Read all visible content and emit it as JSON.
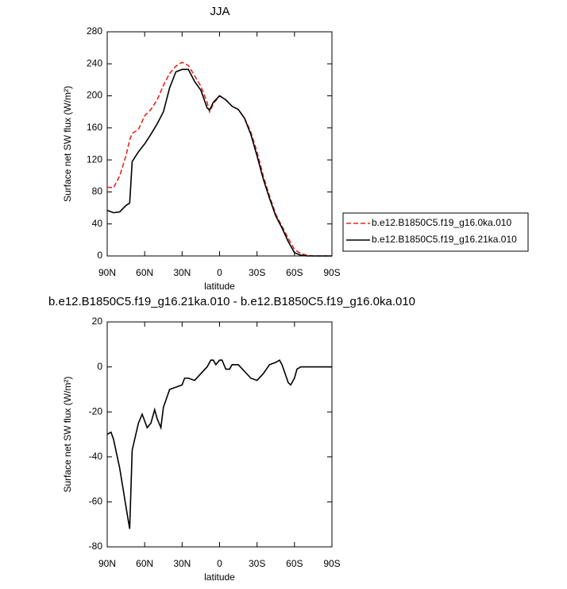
{
  "chart_data": [
    {
      "type": "line",
      "title": "JJA",
      "x_label": "latitude",
      "y_label": "Surface net SW flux (W/m²)",
      "x": [
        90,
        85,
        80,
        75,
        72,
        70,
        65,
        60,
        55,
        50,
        45,
        40,
        35,
        30,
        25,
        20,
        15,
        10,
        8,
        5,
        0,
        -5,
        -10,
        -15,
        -20,
        -25,
        -30,
        -35,
        -40,
        -45,
        -50,
        -55,
        -60,
        -65,
        -70,
        -75,
        -80,
        -85,
        -90
      ],
      "series": [
        {
          "name": "b.e12.B1850C5.f19_g16.0ka.010",
          "color": "#e8251f",
          "line_style": "dashed",
          "values": [
            86,
            85,
            100,
            125,
            145,
            153,
            158,
            175,
            183,
            195,
            213,
            228,
            237,
            242,
            238,
            225,
            212,
            192,
            180,
            190,
            200,
            195,
            187,
            183,
            172,
            155,
            130,
            100,
            75,
            52,
            37,
            22,
            8,
            3,
            1,
            0,
            0,
            0,
            0
          ]
        },
        {
          "name": "b.e12.B1850C5.f19_g16.21ka.010",
          "color": "#000000",
          "line_style": "solid",
          "values": [
            57,
            54,
            55,
            63,
            66,
            118,
            130,
            140,
            152,
            165,
            180,
            210,
            230,
            233,
            233,
            218,
            207,
            185,
            182,
            192,
            200,
            195,
            187,
            183,
            172,
            152,
            125,
            96,
            72,
            50,
            35,
            18,
            4,
            1,
            0,
            0,
            0,
            0,
            0
          ]
        }
      ],
      "xlim": [
        90,
        -90
      ],
      "xticks": [
        {
          "value": 90,
          "label": "90N"
        },
        {
          "value": 60,
          "label": "60N"
        },
        {
          "value": 30,
          "label": "30N"
        },
        0,
        {
          "value": -30,
          "label": "30S"
        },
        {
          "value": -60,
          "label": "60S"
        },
        {
          "value": -90,
          "label": "90S"
        }
      ],
      "ylim": [
        0,
        280
      ],
      "yticks": [
        0,
        40,
        80,
        120,
        160,
        200,
        240,
        280
      ],
      "legend": "right"
    },
    {
      "type": "line",
      "title": "b.e12.B1850C5.f19_g16.21ka.010 - b.e12.B1850C5.f19_g16.0ka.010",
      "x_label": "latitude",
      "y_label": "Surface net SW flux (W/m²)",
      "x": [
        90,
        87,
        85,
        80,
        75,
        72,
        70,
        65,
        62,
        60,
        58,
        55,
        52,
        50,
        47,
        45,
        40,
        35,
        30,
        28,
        25,
        20,
        15,
        10,
        7,
        5,
        3,
        0,
        -2,
        -5,
        -8,
        -10,
        -15,
        -20,
        -25,
        -30,
        -35,
        -40,
        -45,
        -48,
        -50,
        -55,
        -57,
        -60,
        -62,
        -65,
        -70,
        -80,
        -90
      ],
      "values": [
        -30,
        -29,
        -32,
        -45,
        -62,
        -72,
        -37,
        -25,
        -21,
        -24,
        -27,
        -25,
        -19,
        -23,
        -27,
        -18,
        -10,
        -9,
        -8,
        -5,
        -5,
        -6,
        -3,
        0,
        3,
        3,
        1,
        3,
        3,
        -1,
        -1,
        1,
        1,
        -2,
        -5,
        -6,
        -3,
        1,
        2,
        3,
        1,
        -7,
        -8,
        -5,
        -1,
        0,
        0,
        0,
        0
      ],
      "color": "#000000",
      "xlim": [
        90,
        -90
      ],
      "xticks": [
        {
          "value": 90,
          "label": "90N"
        },
        {
          "value": 60,
          "label": "60N"
        },
        {
          "value": 30,
          "label": "30N"
        },
        0,
        {
          "value": -30,
          "label": "30S"
        },
        {
          "value": -60,
          "label": "60S"
        },
        {
          "value": -90,
          "label": "90S"
        }
      ],
      "ylim": [
        -80,
        20
      ],
      "yticks": [
        -80,
        -60,
        -40,
        -20,
        0,
        20
      ]
    }
  ]
}
